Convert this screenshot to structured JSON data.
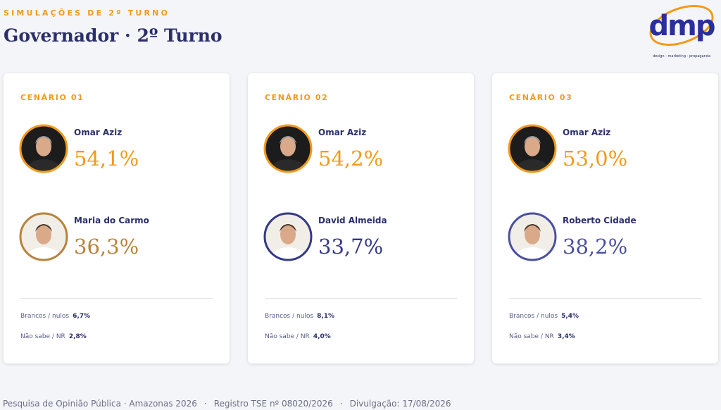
{
  "header": {
    "kicker": "SIMULAÇÕES DE 2º TURNO",
    "title": "Governador · 2º Turno"
  },
  "logo": {
    "text": "dmp",
    "tagline": "design - marketing - propaganda"
  },
  "cards": [
    {
      "label": "CENÁRIO 01",
      "candidates": [
        {
          "name": "Omar Aziz",
          "percent": "54,1%",
          "color": "#f29a1a"
        },
        {
          "name": "Maria do Carmo",
          "percent": "36,3%",
          "color": "#b9823a"
        }
      ],
      "stats": [
        {
          "label": "Brancos / nulos",
          "value": "6,7%"
        },
        {
          "label": "Não sabe / NR",
          "value": "2,8%"
        }
      ]
    },
    {
      "label": "CENÁRIO 02",
      "candidates": [
        {
          "name": "Omar Aziz",
          "percent": "54,2%",
          "color": "#f29a1a"
        },
        {
          "name": "David Almeida",
          "percent": "33,7%",
          "color": "#343a86"
        }
      ],
      "stats": [
        {
          "label": "Brancos / nulos",
          "value": "8,1%"
        },
        {
          "label": "Não sabe / NR",
          "value": "4,0%"
        }
      ]
    },
    {
      "label": "CENÁRIO 03",
      "candidates": [
        {
          "name": "Omar Aziz",
          "percent": "53,0%",
          "color": "#f29a1a"
        },
        {
          "name": "Roberto Cidade",
          "percent": "38,2%",
          "color": "#4a50a0"
        }
      ],
      "stats": [
        {
          "label": "Brancos / nulos",
          "value": "5,4%"
        },
        {
          "label": "Não sabe / NR",
          "value": "3,4%"
        }
      ]
    }
  ],
  "footer": {
    "items": [
      "Pesquisa de Opinião Pública · Amazonas 2026",
      "Registro TSE nº 08020/2026",
      "Divulgação: 17/08/2026"
    ],
    "separator": "·"
  }
}
